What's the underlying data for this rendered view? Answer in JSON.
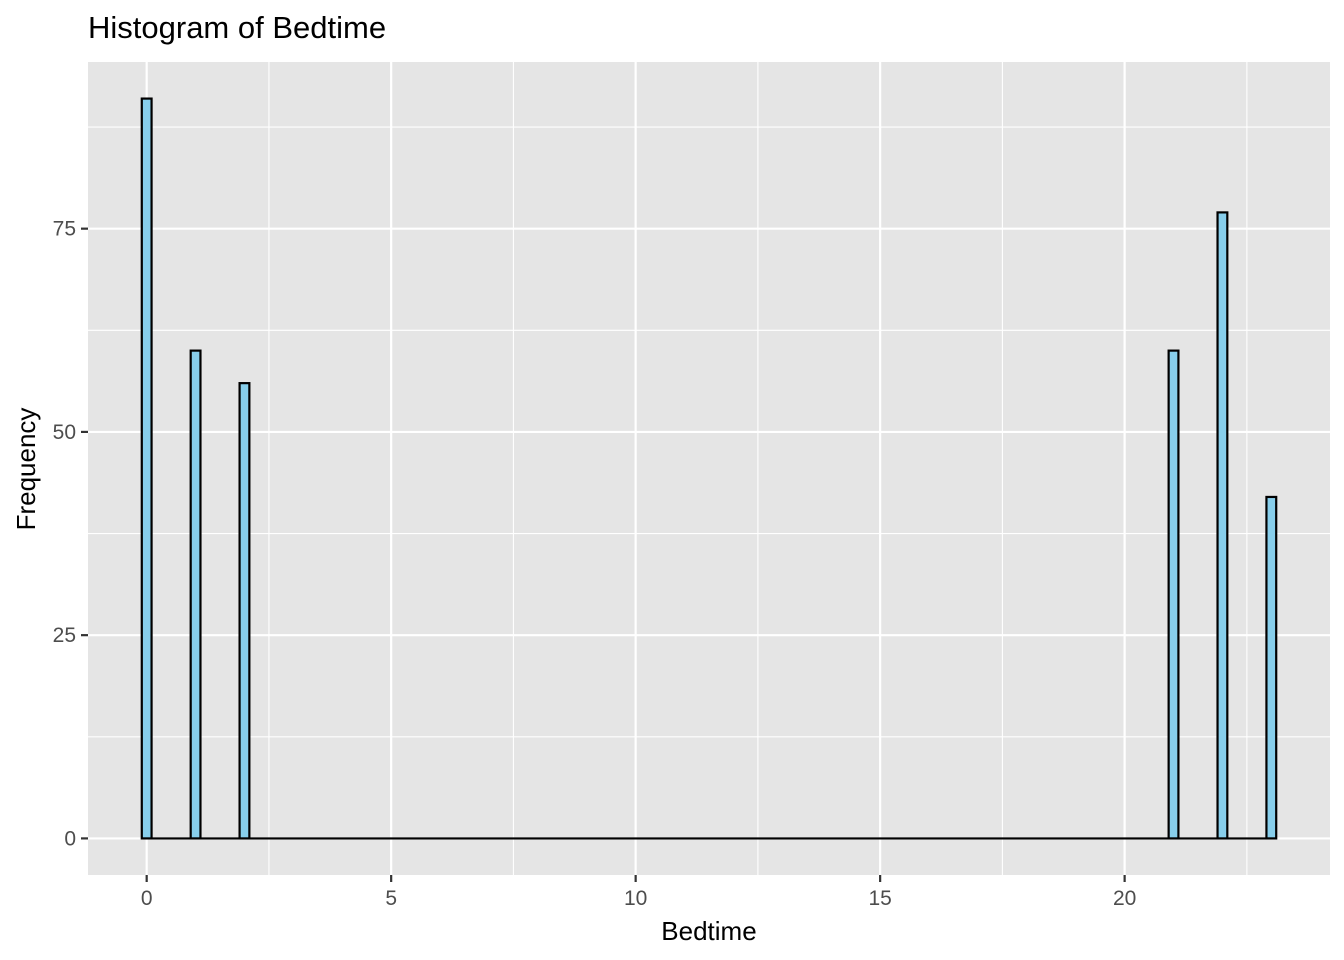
{
  "chart_data": {
    "type": "bar",
    "title": "Histogram of Bedtime",
    "xlabel": "Bedtime",
    "ylabel": "Frequency",
    "binwidth": 0.2,
    "xlim": [
      -1.2,
      24.2
    ],
    "ylim": [
      -4.5,
      95.5
    ],
    "x_ticks": [
      0,
      5,
      10,
      15,
      20
    ],
    "y_ticks": [
      0,
      25,
      50,
      75
    ],
    "grid": true,
    "bars": [
      {
        "x": 0,
        "value": 91
      },
      {
        "x": 1,
        "value": 60
      },
      {
        "x": 2,
        "value": 56
      },
      {
        "x": 21,
        "value": 60
      },
      {
        "x": 22,
        "value": 77
      },
      {
        "x": 23,
        "value": 42
      }
    ],
    "colors": {
      "bar_fill": "#87ceeb",
      "bar_outline": "#000000",
      "panel_background": "#e5e5e5",
      "grid": "#ffffff"
    }
  }
}
